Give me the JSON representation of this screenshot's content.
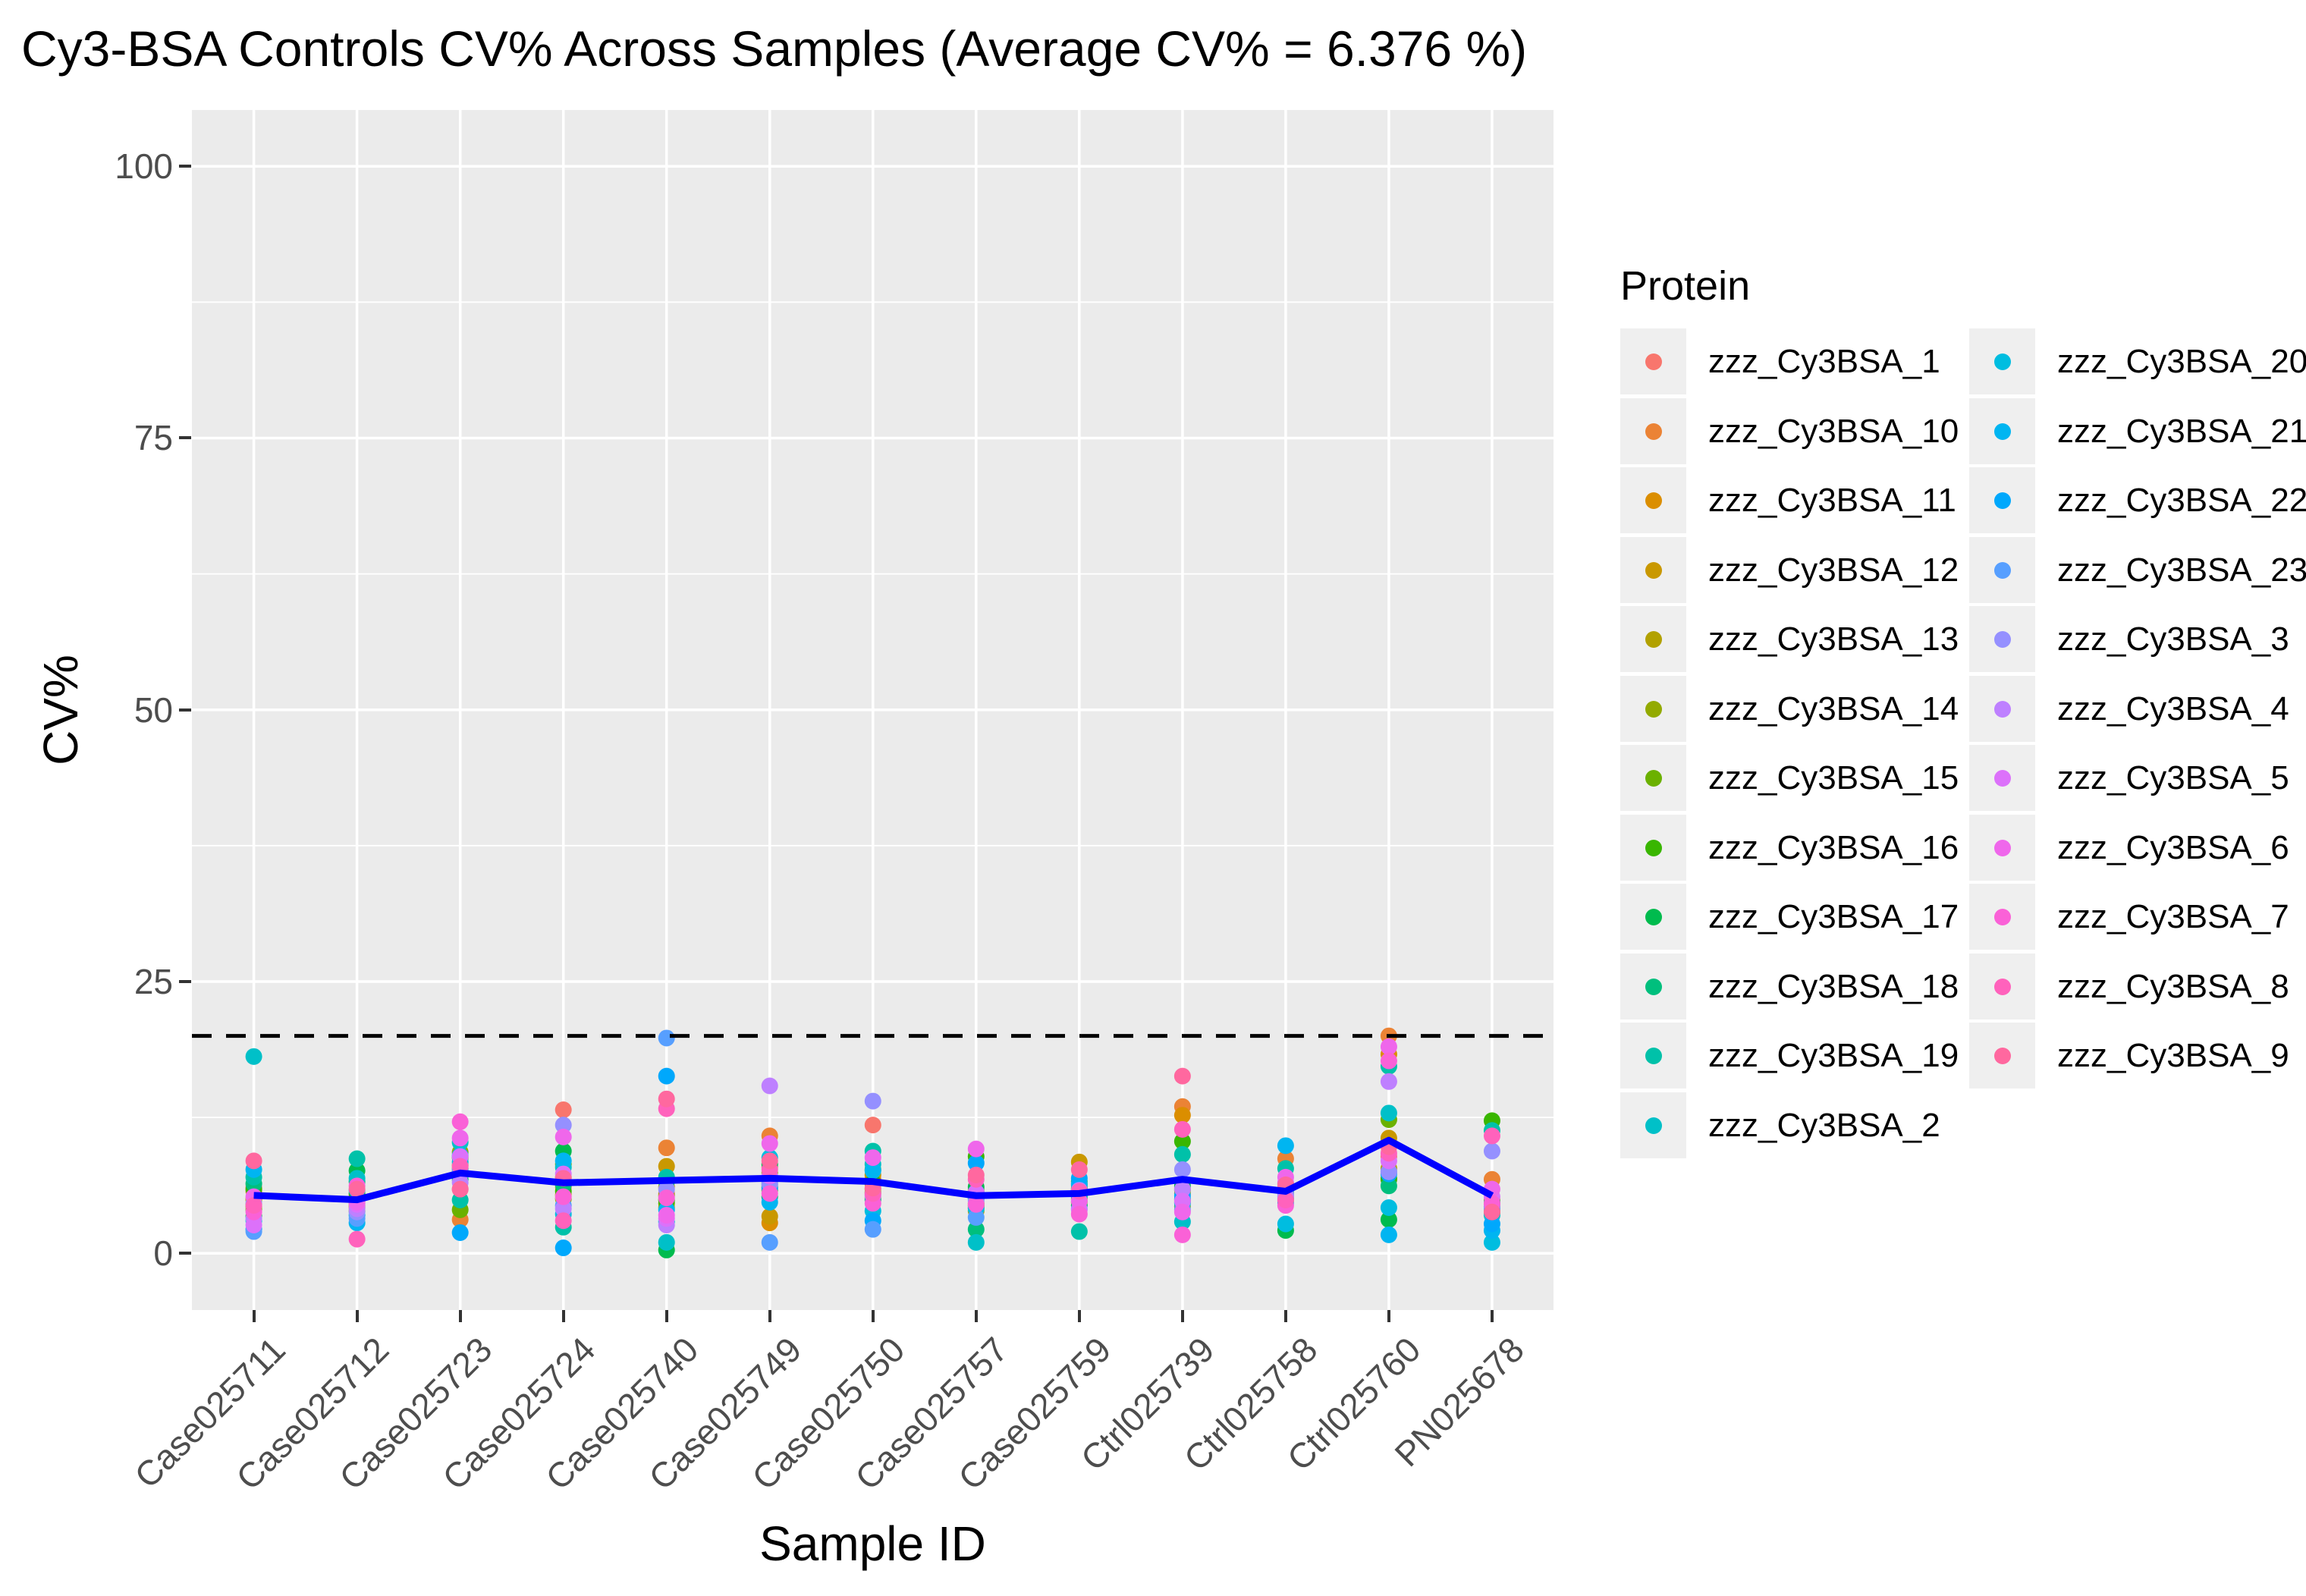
{
  "page": {
    "background": "#FFFFFF"
  },
  "chart_data": {
    "type": "scatter",
    "title": "Cy3-BSA Controls CV% Across Samples (Average CV% = 6.376 %)",
    "xlabel": "Sample ID",
    "ylabel": "CV%",
    "average_cv_pct": 6.376,
    "ylim": [
      0,
      100
    ],
    "yticks": [
      0,
      25,
      50,
      75,
      100
    ],
    "yticks_minor": [
      12.5,
      37.5,
      62.5,
      87.5
    ],
    "grid": "horizontal major+minor and vertical category gridlines, white on grey panel",
    "legend_position": "right",
    "legend_title": "Protein",
    "panel_background": "#EBEBEB",
    "gridline_color": "#FFFFFF",
    "axis_text_color": "#4D4D4D",
    "mean_line_color": "#0000FF",
    "threshold": {
      "value": 20,
      "style": "dashed",
      "color": "#000000"
    },
    "categories": [
      "Case025711",
      "Case025712",
      "Case025723",
      "Case025724",
      "Case025740",
      "Case025749",
      "Case025750",
      "Case025757",
      "Case025759",
      "Ctrl025739",
      "Ctrl025758",
      "Ctrl025760",
      "PN025678"
    ],
    "proteins": [
      {
        "name": "zzz_Cy3BSA_1",
        "color": "#F8766D"
      },
      {
        "name": "zzz_Cy3BSA_10",
        "color": "#EB8335"
      },
      {
        "name": "zzz_Cy3BSA_11",
        "color": "#DB8E00"
      },
      {
        "name": "zzz_Cy3BSA_12",
        "color": "#C99800"
      },
      {
        "name": "zzz_Cy3BSA_13",
        "color": "#B2A100"
      },
      {
        "name": "zzz_Cy3BSA_14",
        "color": "#93AA00"
      },
      {
        "name": "zzz_Cy3BSA_15",
        "color": "#6BB100"
      },
      {
        "name": "zzz_Cy3BSA_16",
        "color": "#39B600"
      },
      {
        "name": "zzz_Cy3BSA_17",
        "color": "#00BB4E"
      },
      {
        "name": "zzz_Cy3BSA_18",
        "color": "#00BF7D"
      },
      {
        "name": "zzz_Cy3BSA_19",
        "color": "#00C1A9"
      },
      {
        "name": "zzz_Cy3BSA_2",
        "color": "#00C0C8"
      },
      {
        "name": "zzz_Cy3BSA_20",
        "color": "#00BDE0"
      },
      {
        "name": "zzz_Cy3BSA_21",
        "color": "#00B5F1"
      },
      {
        "name": "zzz_Cy3BSA_22",
        "color": "#00A8FC"
      },
      {
        "name": "zzz_Cy3BSA_23",
        "color": "#579FFF"
      },
      {
        "name": "zzz_Cy3BSA_3",
        "color": "#9590FF"
      },
      {
        "name": "zzz_Cy3BSA_4",
        "color": "#BE80FF"
      },
      {
        "name": "zzz_Cy3BSA_5",
        "color": "#DC71FA"
      },
      {
        "name": "zzz_Cy3BSA_6",
        "color": "#EF67EB"
      },
      {
        "name": "zzz_Cy3BSA_7",
        "color": "#FA61D7"
      },
      {
        "name": "zzz_Cy3BSA_8",
        "color": "#FF62BC"
      },
      {
        "name": "zzz_Cy3BSA_9",
        "color": "#FF689F"
      }
    ],
    "cv_values_by_sample": [
      [
        6.1,
        5.7,
        4.9,
        4.5,
        5.0,
        4.3,
        4.0,
        5.9,
        3.4,
        6.4,
        7.0,
        18.1,
        3.0,
        7.7,
        2.2,
        2.0,
        4.6,
        3.2,
        2.6,
        5.2,
        3.8,
        4.4,
        8.5
      ],
      [
        5.3,
        4.6,
        4.2,
        5.0,
        4.4,
        3.9,
        4.8,
        5.5,
        7.6,
        6.6,
        8.7,
        6.9,
        3.5,
        2.8,
        5.8,
        3.2,
        3.8,
        4.1,
        4.5,
        4.7,
        6.2,
        1.3,
        5.9
      ],
      [
        5.9,
        3.1,
        7.8,
        8.1,
        7.5,
        9.3,
        4.0,
        8.8,
        7.2,
        6.8,
        4.9,
        10.2,
        8.4,
        9.0,
        1.9,
        7.7,
        7.3,
        6.5,
        8.9,
        10.6,
        12.1,
        8.0,
        5.9
      ],
      [
        13.2,
        6.1,
        5.4,
        7.0,
        6.6,
        5.0,
        8.2,
        5.7,
        9.4,
        6.3,
        2.4,
        7.9,
        3.6,
        8.5,
        0.5,
        4.4,
        11.8,
        4.1,
        7.3,
        10.7,
        5.2,
        3.0,
        6.9
      ],
      [
        5.5,
        9.7,
        4.2,
        8.0,
        6.1,
        5.3,
        4.6,
        4.9,
        0.3,
        6.6,
        7.0,
        1.0,
        2.9,
        4.0,
        16.3,
        19.8,
        5.9,
        2.6,
        3.2,
        3.5,
        5.1,
        13.3,
        14.2
      ],
      [
        7.9,
        10.8,
        2.8,
        3.4,
        6.1,
        7.4,
        5.8,
        6.6,
        8.2,
        5.2,
        7.0,
        6.3,
        8.8,
        4.7,
        6.0,
        1.0,
        6.4,
        15.4,
        7.1,
        10.1,
        5.5,
        7.7,
        8.5
      ],
      [
        11.8,
        6.8,
        5.9,
        7.2,
        5.1,
        6.4,
        5.6,
        6.5,
        7.7,
        4.9,
        9.4,
        8.2,
        3.9,
        7.6,
        3.0,
        2.2,
        14.0,
        5.3,
        5.4,
        8.8,
        4.6,
        5.5,
        6.0
      ],
      [
        5.8,
        4.2,
        5.1,
        4.6,
        3.9,
        5.4,
        4.4,
        8.9,
        6.1,
        2.2,
        5.0,
        1.0,
        4.1,
        5.6,
        8.3,
        3.3,
        4.8,
        5.6,
        5.5,
        9.6,
        4.5,
        6.8,
        7.2
      ],
      [
        6.2,
        5.0,
        5.9,
        8.4,
        4.7,
        6.0,
        5.2,
        6.6,
        4.4,
        5.8,
        2.0,
        6.3,
        5.3,
        6.4,
        6.9,
        4.1,
        5.7,
        5.8,
        4.0,
        4.8,
        3.6,
        5.7,
        7.7
      ],
      [
        6.0,
        13.5,
        12.7,
        4.9,
        5.5,
        4.3,
        5.8,
        10.3,
        6.2,
        4.7,
        9.1,
        2.9,
        4.6,
        5.0,
        5.3,
        4.0,
        7.7,
        5.9,
        4.8,
        3.8,
        1.7,
        11.4,
        16.3
      ],
      [
        6.1,
        8.7,
        5.4,
        5.9,
        4.8,
        5.6,
        5.0,
        6.4,
        2.1,
        5.2,
        7.8,
        5.8,
        2.7,
        9.9,
        4.6,
        5.5,
        5.3,
        5.2,
        6.5,
        7.0,
        4.4,
        4.9,
        6.3
      ],
      [
        8.9,
        20.0,
        18.3,
        10.6,
        7.8,
        6.9,
        12.3,
        6.8,
        3.1,
        6.2,
        17.2,
        12.9,
        4.2,
        1.7,
        7.3,
        7.5,
        7.5,
        15.8,
        8.5,
        19.0,
        17.7,
        9.2,
        9.8
      ],
      [
        4.2,
        6.8,
        3.8,
        4.9,
        4.0,
        4.5,
        3.7,
        12.2,
        4.3,
        4.7,
        11.3,
        3.5,
        1.0,
        2.1,
        2.7,
        4.1,
        9.4,
        4.4,
        5.2,
        5.9,
        4.6,
        10.8,
        3.8
      ]
    ],
    "mean_line": "blue line = per-sample mean of all protein CV values"
  }
}
